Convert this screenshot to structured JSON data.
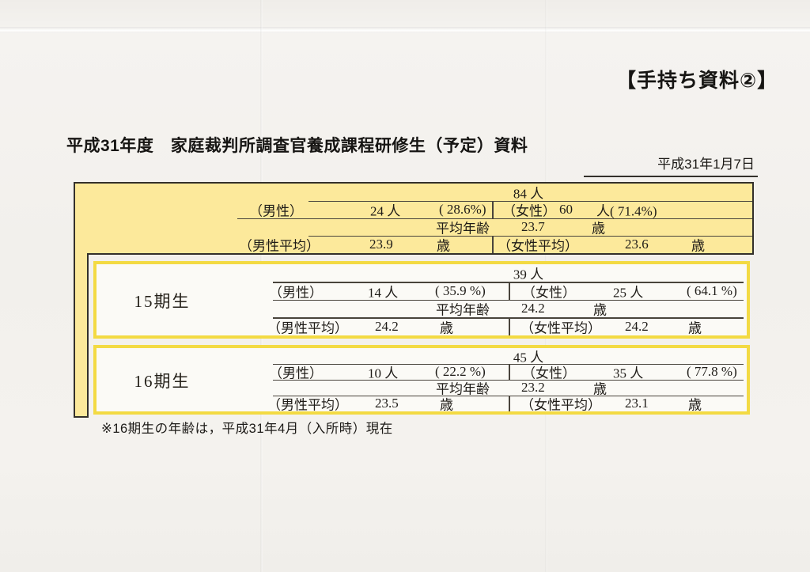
{
  "header": {
    "corner_tag": "【手持ち資料②】",
    "title": "平成31年度　家庭裁判所調査官養成課程研修生（予定）資料",
    "date": "平成31年1月7日"
  },
  "overall": {
    "total": "84 人",
    "male_label": "（男性）",
    "male_count": "24 人",
    "male_pct": "( 28.6%)",
    "female_label": "（女性）",
    "female_count": "60",
    "female_unit_pct": "人( 71.4%)",
    "avg_label": "平均年齢",
    "avg_value": "23.7",
    "avg_unit": "歳",
    "male_avg_label": "（男性平均）",
    "male_avg_value": "23.9",
    "male_avg_unit": "歳",
    "female_avg_label": "（女性平均）",
    "female_avg_value": "23.6",
    "female_avg_unit": "歳"
  },
  "groups": [
    {
      "name": "15期生",
      "total": "39 人",
      "male_label": "（男性）",
      "male_count": "14 人",
      "male_pct": "( 35.9 %)",
      "female_label": "（女性）",
      "female_count": "25 人",
      "female_pct": "( 64.1 %)",
      "avg_label": "平均年齢",
      "avg_value": "24.2",
      "avg_unit": "歳",
      "male_avg_label": "（男性平均）",
      "male_avg_value": "24.2",
      "male_avg_unit": "歳",
      "female_avg_label": "（女性平均）",
      "female_avg_value": "24.2",
      "female_avg_unit": "歳"
    },
    {
      "name": "16期生",
      "total": "45 人",
      "male_label": "（男性）",
      "male_count": "10 人",
      "male_pct": "( 22.2 %)",
      "female_label": "（女性）",
      "female_count": "35 人",
      "female_pct": "( 77.8 %)",
      "avg_label": "平均年齢",
      "avg_value": "23.2",
      "avg_unit": "歳",
      "male_avg_label": "（男性平均）",
      "male_avg_value": "23.5",
      "male_avg_unit": "歳",
      "female_avg_label": "（女性平均）",
      "female_avg_value": "23.1",
      "female_avg_unit": "歳"
    }
  ],
  "footnote": "※16期生の年齢は，平成31年4月（入所時）現在",
  "colors": {
    "highlight_yellow": "#fce99b",
    "box_border_yellow": "#f3da43",
    "line_black": "#33302b"
  }
}
